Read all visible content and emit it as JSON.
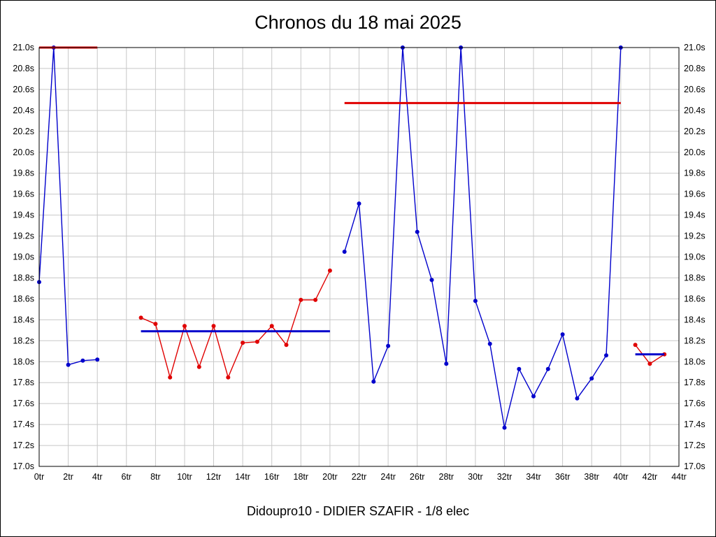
{
  "title": "Chronos du 18 mai 2025",
  "footer": "Didoupro10 - DIDIER SZAFIR - 1/8 elec",
  "chart_data": {
    "type": "line",
    "title": "Chronos du 18 mai 2025",
    "subtitle": "Didoupro10 - DIDIER SZAFIR - 1/8 elec",
    "xlabel": "",
    "ylabel": "",
    "xlim": [
      0,
      44
    ],
    "ylim": [
      17.0,
      21.0
    ],
    "x_tick_step": 2,
    "y_tick_step": 0.2,
    "x_tick_suffix": "tr",
    "y_tick_suffix": "s",
    "grid": true,
    "legend": "none",
    "colors": {
      "grid": "#c8c8c8",
      "axis": "#000000",
      "blue": "#0000cc",
      "red": "#e00000",
      "background": "#ffffff"
    },
    "series": [
      {
        "name": "lap-times-blue-run-1",
        "color": "#0000cc",
        "x": [
          0,
          1,
          2,
          3,
          4
        ],
        "values": [
          18.76,
          21.0,
          17.97,
          18.01,
          18.02
        ]
      },
      {
        "name": "lap-times-red-run-2",
        "color": "#e00000",
        "x": [
          7,
          8,
          9,
          10,
          11,
          12,
          13,
          14,
          15,
          16,
          17,
          18,
          19,
          20
        ],
        "values": [
          18.42,
          18.36,
          17.85,
          18.34,
          17.95,
          18.34,
          17.85,
          18.18,
          18.19,
          18.34,
          18.16,
          18.59,
          18.59,
          18.87
        ]
      },
      {
        "name": "lap-times-blue-run-3",
        "color": "#0000cc",
        "x": [
          21,
          22,
          23,
          24,
          25,
          26,
          27,
          28,
          29,
          30,
          31,
          32,
          33,
          34,
          35,
          36,
          37,
          38,
          39,
          40
        ],
        "values": [
          19.05,
          19.51,
          17.81,
          18.15,
          21.0,
          19.24,
          18.78,
          17.98,
          21.0,
          18.58,
          18.17,
          17.37,
          17.93,
          17.67,
          17.93,
          18.26,
          17.65,
          17.84,
          18.06,
          21.0
        ]
      },
      {
        "name": "lap-times-red-run-4",
        "color": "#e00000",
        "x": [
          41,
          42,
          43
        ],
        "values": [
          18.16,
          17.98,
          18.07
        ]
      }
    ],
    "reference_lines": [
      {
        "name": "avg-line-red-run-1",
        "color": "#e00000",
        "y": 21.0,
        "x_start": 0,
        "x_end": 4
      },
      {
        "name": "avg-line-blue-run-2",
        "color": "#0000cc",
        "y": 18.29,
        "x_start": 7,
        "x_end": 20
      },
      {
        "name": "avg-line-red-run-3",
        "color": "#e00000",
        "y": 20.47,
        "x_start": 21,
        "x_end": 40
      },
      {
        "name": "avg-line-blue-run-4",
        "color": "#0000cc",
        "y": 18.07,
        "x_start": 41,
        "x_end": 43
      }
    ]
  }
}
